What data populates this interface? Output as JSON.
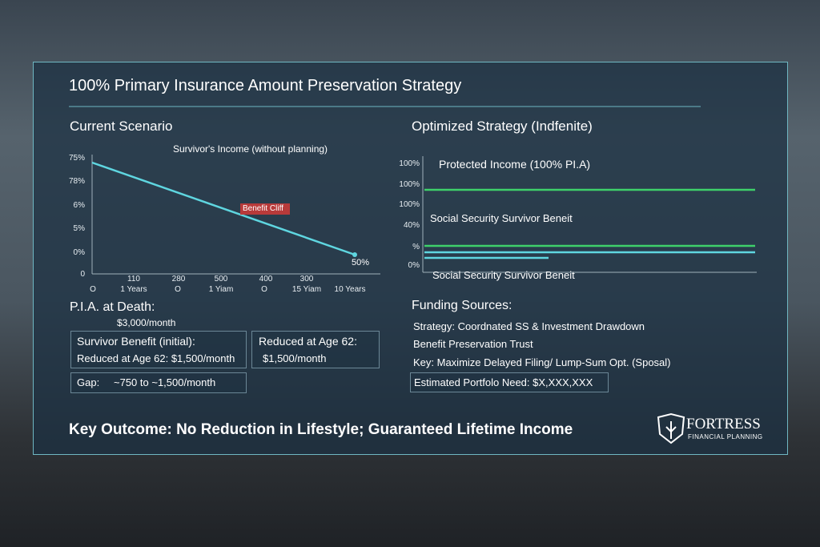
{
  "title": "100% Primary Insurance Amount Preservation Strategy",
  "current": {
    "heading": "Current Scenario",
    "chart_title": "Survivor's Income (without planning)",
    "y_labels": [
      "75%",
      "78%",
      "6%",
      "5%",
      "0%",
      "0"
    ],
    "x_labels": [
      "110",
      "280",
      "500",
      "400",
      "300"
    ],
    "x_sublabels": [
      "O",
      "1 Years",
      "O",
      "1 Yiam",
      "O",
      "15 Yiam",
      "10 Years"
    ],
    "annotation": "Benefit Cliff",
    "end_label": "50%"
  },
  "optimized": {
    "heading": "Optimized Strategy (Indfenite)",
    "y_labels": [
      "100%",
      "100%",
      "100%",
      "40%",
      "%",
      "0%"
    ],
    "series_top": "Protected Income (100% PI.A)",
    "series_mid": "Social Security Survivor Beneit",
    "series_bottom": "Social Security Survivor Beneit"
  },
  "pia": {
    "label": "P.I.A. at Death:",
    "value": "$3,000/month"
  },
  "survivor_box": {
    "title": "Survivor Benefit (initial):",
    "line": "Reduced at Age 62: $1,500/month"
  },
  "reduced_box": {
    "title": "Reduced at Age 62:",
    "line": "$1,500/month"
  },
  "gap": {
    "label": "Gap:",
    "value": "~750 to ~1,500/month"
  },
  "funding": {
    "heading": "Funding Sources:",
    "items": [
      "Strategy: Coordnated SS & Investment Drawdown",
      "Benefit Preservation Trust",
      "Key: Maximize Delayed Filing/ Lump-Sum Opt. (Sposal)"
    ],
    "estimate": "Estimated Portfolo Need: $X,XXX,XXX"
  },
  "footer": "Key Outcome: No Reduction in Lifestyle; Guaranteed Lifetime Income",
  "logo": {
    "name": "FORTRESS",
    "tagline": "FINANCIAL PLANNING"
  }
}
